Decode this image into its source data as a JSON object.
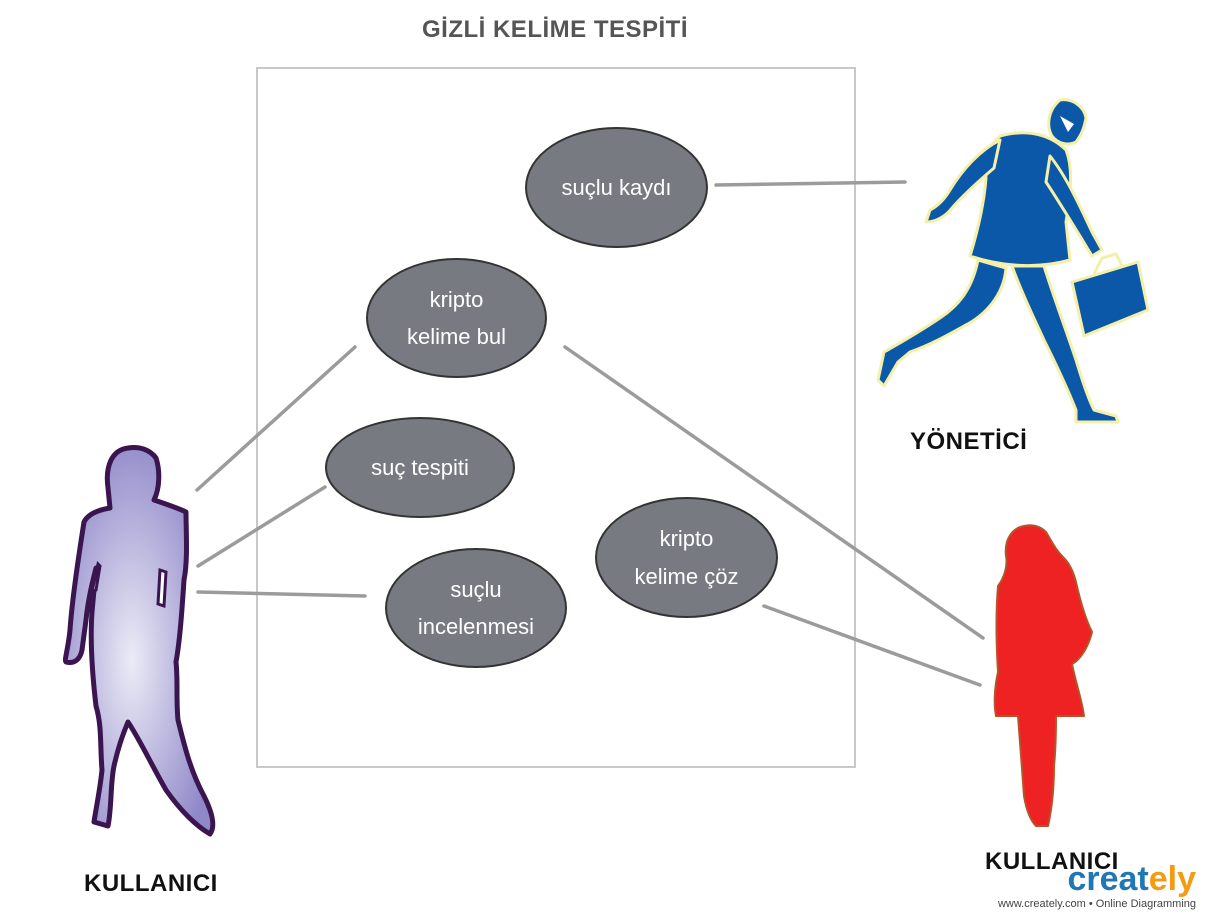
{
  "diagram": {
    "title": "GİZLİ KELİME TESPİTİ",
    "use_cases": [
      {
        "id": "suclu_kaydi",
        "label": "suçlu kaydı"
      },
      {
        "id": "kripto_bul",
        "label": "kripto\nkelime bul"
      },
      {
        "id": "suc_tespiti",
        "label": "suç tespiti"
      },
      {
        "id": "kripto_coz",
        "label": "kripto\nkelime çöz"
      },
      {
        "id": "suclu_incelenmesi",
        "label": "suçlu\nincelenmesi"
      }
    ],
    "actors": [
      {
        "id": "yonetici",
        "label": "YÖNETİCİ",
        "color": "#0b57a8"
      },
      {
        "id": "kullanici_left",
        "label": "KULLANICI",
        "color": "#a9a3d6"
      },
      {
        "id": "kullanici_right",
        "label": "KULLANICI",
        "color": "#ee2222"
      }
    ],
    "associations": [
      [
        "yonetici",
        "suclu_kaydi"
      ],
      [
        "kullanici_left",
        "kripto_bul"
      ],
      [
        "kullanici_left",
        "suc_tespiti"
      ],
      [
        "kullanici_left",
        "suclu_incelenmesi"
      ],
      [
        "kullanici_right",
        "kripto_bul"
      ],
      [
        "kullanici_right",
        "kripto_coz"
      ]
    ]
  },
  "branding": {
    "logo_part1": "creat",
    "logo_part2": "ely",
    "tagline": "www.creately.com • Online Diagramming"
  }
}
